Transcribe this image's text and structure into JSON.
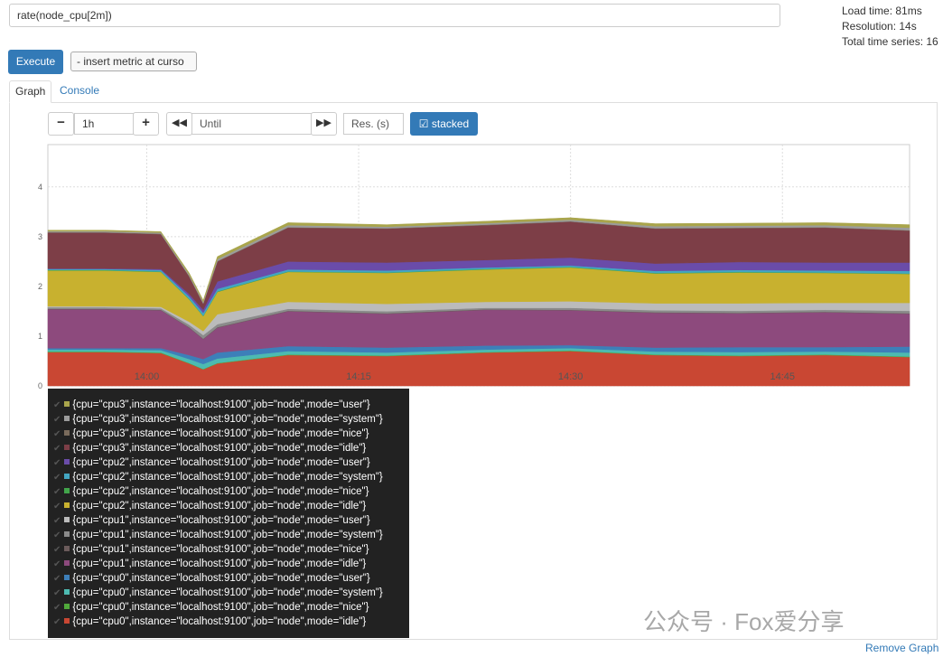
{
  "query": {
    "expression": "rate(node_cpu[2m])",
    "execute": "Execute",
    "insert_metric": "- insert metric at curso"
  },
  "stats": {
    "load_time": "Load time: 81ms",
    "resolution": "Resolution: 14s",
    "total_series": "Total time series: 16"
  },
  "tabs": [
    "Graph",
    "Console"
  ],
  "controls": {
    "range": "1h",
    "until": "Until",
    "resolution": "Res. (s)",
    "stacked": "stacked"
  },
  "chart_data": {
    "type": "stacked-area",
    "x": [
      "13:53",
      "13:57",
      "14:01",
      "14:03",
      "14:04",
      "14:05",
      "14:10",
      "14:17",
      "14:24",
      "14:30",
      "14:36",
      "14:42",
      "14:48",
      "14:54"
    ],
    "xlim": [
      "13:53",
      "14:54"
    ],
    "xticks": [
      "14:00",
      "14:15",
      "14:30",
      "14:45"
    ],
    "ylim": [
      0,
      4.85
    ],
    "yticks": [
      0,
      1,
      2,
      3,
      4
    ],
    "grid": true,
    "series": [
      {
        "name": "{cpu=\"cpu3\",instance=\"localhost:9100\",job=\"node\",mode=\"user\"}",
        "color": "#a9a54c",
        "values": [
          0.02,
          0.02,
          0.02,
          0.03,
          0.03,
          0.05,
          0.05,
          0.04,
          0.04,
          0.04,
          0.05,
          0.05,
          0.05,
          0.06
        ]
      },
      {
        "name": "{cpu=\"cpu3\",instance=\"localhost:9100\",job=\"node\",mode=\"system\"}",
        "color": "#9c9c9c",
        "values": [
          0.02,
          0.02,
          0.02,
          0.03,
          0.03,
          0.04,
          0.04,
          0.03,
          0.03,
          0.03,
          0.04,
          0.04,
          0.04,
          0.05
        ]
      },
      {
        "name": "{cpu=\"cpu3\",instance=\"localhost:9100\",job=\"node\",mode=\"nice\"}",
        "color": "#7a6b5c",
        "values": [
          0.01,
          0.01,
          0.01,
          0.01,
          0.01,
          0.01,
          0.01,
          0.01,
          0.01,
          0.01,
          0.01,
          0.01,
          0.01,
          0.01
        ]
      },
      {
        "name": "{cpu=\"cpu3\",instance=\"localhost:9100\",job=\"node\",mode=\"idle\"}",
        "color": "#7d3e47",
        "values": [
          0.72,
          0.72,
          0.7,
          0.35,
          0.12,
          0.4,
          0.68,
          0.68,
          0.7,
          0.72,
          0.7,
          0.68,
          0.7,
          0.64
        ]
      },
      {
        "name": "{cpu=\"cpu2\",instance=\"localhost:9100\",job=\"node\",mode=\"user\"}",
        "color": "#6a4ca9",
        "values": [
          0.01,
          0.01,
          0.02,
          0.05,
          0.06,
          0.15,
          0.16,
          0.16,
          0.15,
          0.16,
          0.15,
          0.16,
          0.16,
          0.17
        ]
      },
      {
        "name": "{cpu=\"cpu2\",instance=\"localhost:9100\",job=\"node\",mode=\"system\"}",
        "color": "#43a6c2",
        "values": [
          0.02,
          0.02,
          0.03,
          0.05,
          0.06,
          0.05,
          0.04,
          0.04,
          0.03,
          0.03,
          0.04,
          0.04,
          0.04,
          0.05
        ]
      },
      {
        "name": "{cpu=\"cpu2\",instance=\"localhost:9100\",job=\"node\",mode=\"nice\"}",
        "color": "#42a54b",
        "values": [
          0.01,
          0.01,
          0.01,
          0.01,
          0.01,
          0.01,
          0.01,
          0.01,
          0.01,
          0.01,
          0.01,
          0.01,
          0.01,
          0.01
        ]
      },
      {
        "name": "{cpu=\"cpu2\",instance=\"localhost:9100\",job=\"node\",mode=\"idle\"}",
        "color": "#c8b12f",
        "values": [
          0.72,
          0.72,
          0.7,
          0.45,
          0.3,
          0.45,
          0.6,
          0.62,
          0.65,
          0.68,
          0.6,
          0.62,
          0.6,
          0.58
        ]
      },
      {
        "name": "{cpu=\"cpu1\",instance=\"localhost:9100\",job=\"node\",mode=\"user\"}",
        "color": "#bbbbbb",
        "values": [
          0.02,
          0.02,
          0.03,
          0.06,
          0.08,
          0.2,
          0.14,
          0.15,
          0.12,
          0.13,
          0.14,
          0.15,
          0.14,
          0.16
        ]
      },
      {
        "name": "{cpu=\"cpu1\",instance=\"localhost:9100\",job=\"node\",mode=\"system\"}",
        "color": "#8b8b8b",
        "values": [
          0.03,
          0.03,
          0.03,
          0.05,
          0.07,
          0.06,
          0.04,
          0.04,
          0.03,
          0.04,
          0.04,
          0.04,
          0.04,
          0.05
        ]
      },
      {
        "name": "{cpu=\"cpu1\",instance=\"localhost:9100\",job=\"node\",mode=\"nice\"}",
        "color": "#6c5c5c",
        "values": [
          0.01,
          0.01,
          0.01,
          0.01,
          0.01,
          0.01,
          0.01,
          0.01,
          0.01,
          0.01,
          0.01,
          0.01,
          0.01,
          0.01
        ]
      },
      {
        "name": "{cpu=\"cpu1\",instance=\"localhost:9100\",job=\"node\",mode=\"idle\"}",
        "color": "#8d4a7d",
        "values": [
          0.78,
          0.78,
          0.76,
          0.55,
          0.4,
          0.5,
          0.7,
          0.68,
          0.72,
          0.7,
          0.7,
          0.68,
          0.7,
          0.66
        ]
      },
      {
        "name": "{cpu=\"cpu0\",instance=\"localhost:9100\",job=\"node\",mode=\"user\"}",
        "color": "#3d7fb9",
        "values": [
          0.03,
          0.03,
          0.04,
          0.08,
          0.1,
          0.12,
          0.1,
          0.1,
          0.08,
          0.06,
          0.08,
          0.1,
          0.09,
          0.12
        ]
      },
      {
        "name": "{cpu=\"cpu0\",instance=\"localhost:9100\",job=\"node\",mode=\"system\"}",
        "color": "#4dbab1",
        "values": [
          0.04,
          0.04,
          0.05,
          0.08,
          0.1,
          0.09,
          0.07,
          0.06,
          0.05,
          0.05,
          0.06,
          0.07,
          0.06,
          0.08
        ]
      },
      {
        "name": "{cpu=\"cpu0\",instance=\"localhost:9100\",job=\"node\",mode=\"nice\"}",
        "color": "#50a93b",
        "values": [
          0.01,
          0.01,
          0.01,
          0.01,
          0.01,
          0.01,
          0.01,
          0.01,
          0.01,
          0.01,
          0.01,
          0.01,
          0.01,
          0.01
        ]
      },
      {
        "name": "{cpu=\"cpu0\",instance=\"localhost:9100\",job=\"node\",mode=\"idle\"}",
        "color": "#c94733",
        "values": [
          0.68,
          0.68,
          0.66,
          0.45,
          0.33,
          0.45,
          0.62,
          0.6,
          0.67,
          0.7,
          0.62,
          0.6,
          0.62,
          0.58
        ]
      }
    ]
  },
  "remove_graph": "Remove Graph",
  "watermark": "公众号 · Fox爱分享"
}
